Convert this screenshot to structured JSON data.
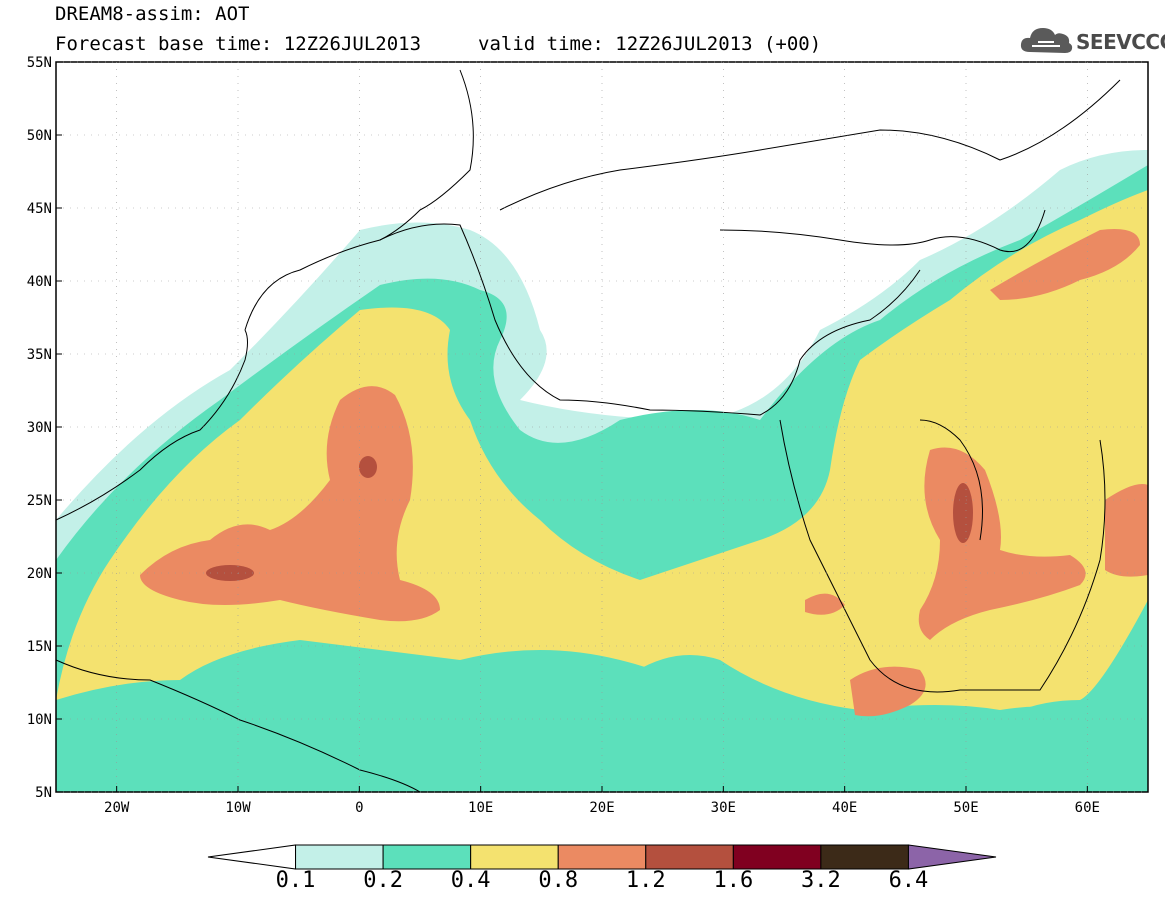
{
  "header": {
    "title": "DREAM8-assim: AOT",
    "base_time": "Forecast base time: 12Z26JUL2013",
    "valid_time": "valid time: 12Z26JUL2013 (+00)"
  },
  "logo": {
    "text": "SEEVCCC",
    "icon": "cloud-icon"
  },
  "map": {
    "extent": {
      "lon": [
        -25,
        65
      ],
      "lat": [
        5,
        55
      ]
    },
    "lat_ticks": [
      {
        "value": 55,
        "label": "55N"
      },
      {
        "value": 50,
        "label": "50N"
      },
      {
        "value": 45,
        "label": "45N"
      },
      {
        "value": 40,
        "label": "40N"
      },
      {
        "value": 35,
        "label": "35N"
      },
      {
        "value": 30,
        "label": "30N"
      },
      {
        "value": 25,
        "label": "25N"
      },
      {
        "value": 20,
        "label": "20N"
      },
      {
        "value": 15,
        "label": "15N"
      },
      {
        "value": 10,
        "label": "10N"
      },
      {
        "value": 5,
        "label": "5N"
      }
    ],
    "lon_ticks": [
      {
        "value": -20,
        "label": "20W"
      },
      {
        "value": -10,
        "label": "10W"
      },
      {
        "value": 0,
        "label": "0"
      },
      {
        "value": 10,
        "label": "10E"
      },
      {
        "value": 20,
        "label": "20E"
      },
      {
        "value": 30,
        "label": "30E"
      },
      {
        "value": 40,
        "label": "40E"
      },
      {
        "value": 50,
        "label": "50E"
      },
      {
        "value": 60,
        "label": "60E"
      }
    ]
  },
  "colorbar": {
    "boundaries": [
      "0.1",
      "0.2",
      "0.4",
      "0.8",
      "1.2",
      "1.6",
      "3.2",
      "6.4"
    ],
    "colors": [
      "#ffffff",
      "#c3f0e8",
      "#5ce0bb",
      "#f4e26f",
      "#eb8a62",
      "#b4503e",
      "#800020",
      "#3c2a18",
      "#8c64a8"
    ]
  }
}
